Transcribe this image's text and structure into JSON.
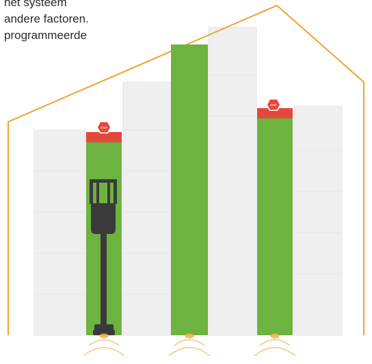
{
  "text_lines": [
    "het systeem",
    "andere factoren.",
    "programmeerde"
  ],
  "stop_sign_text": "STOP",
  "colors": {
    "building_outline": "#f0a12a",
    "racking_green": "#6db33f",
    "racking_bg": "#efefef",
    "stop_red": "#e6473c",
    "forklift": "#3a3a3a",
    "sensor_glow": "#f3b04a"
  }
}
